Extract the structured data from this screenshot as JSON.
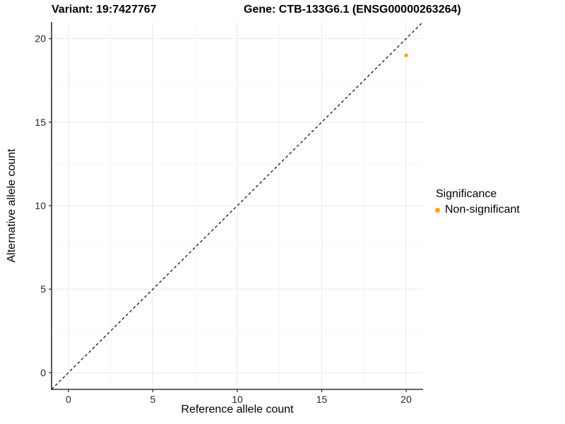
{
  "titles": {
    "variant": "Variant: 19:7427767",
    "gene": "Gene: CTB-133G6.1 (ENSG00000263264)"
  },
  "chart_data": {
    "type": "scatter",
    "title": "Variant: 19:7427767  Gene: CTB-133G6.1 (ENSG00000263264)",
    "xlabel": "Reference allele count",
    "ylabel": "Alternative allele count",
    "xlim": [
      -1,
      21
    ],
    "ylim": [
      -1,
      21
    ],
    "xticks": [
      0,
      5,
      10,
      15,
      20
    ],
    "yticks": [
      0,
      5,
      10,
      15,
      20
    ],
    "xticks_minor": [
      2.5,
      7.5,
      12.5,
      17.5
    ],
    "yticks_minor": [
      2.5,
      7.5,
      12.5,
      17.5
    ],
    "grid": "on",
    "identity_line": {
      "style": "dashed",
      "color": "#000000",
      "from": -1,
      "to": 21
    },
    "points": [
      {
        "x": 20,
        "y": 19,
        "series": "Non-significant"
      }
    ],
    "legend": {
      "position": "right",
      "title": "Significance",
      "entries": [
        {
          "label": "Non-significant",
          "color": "#FFA500"
        }
      ]
    },
    "colors": {
      "point": "#FFA500",
      "grid_major": "#ebebeb",
      "grid_minor": "#f4f4f4",
      "axis_line": "#333333",
      "tick": "#333333",
      "tick_label": "#262626",
      "background": "#ffffff"
    }
  }
}
